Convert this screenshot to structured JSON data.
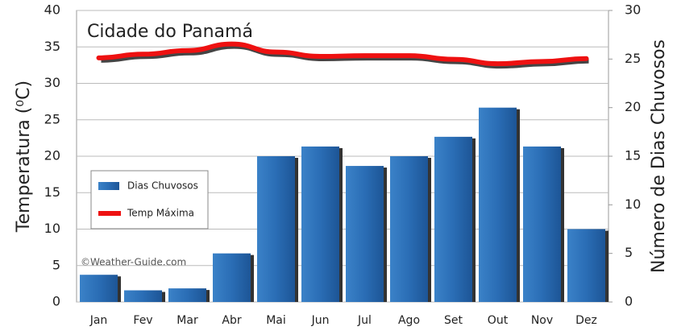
{
  "chart_data": {
    "type": "bar_line",
    "title": "Cidade do Panamá",
    "categories": [
      "Jan",
      "Fev",
      "Mar",
      "Abr",
      "Mai",
      "Jun",
      "Jul",
      "Ago",
      "Set",
      "Out",
      "Nov",
      "Dez"
    ],
    "series": [
      {
        "name": "Dias Chuvosos",
        "type": "bar",
        "axis": "y2",
        "color": "#2a6db5",
        "values": [
          2.8,
          1.2,
          1.4,
          5,
          15,
          16,
          14,
          15,
          17,
          20,
          16,
          7.5
        ]
      },
      {
        "name": "Temp Máxima",
        "type": "line",
        "axis": "y",
        "color": "#ee1111",
        "values": [
          33.5,
          34,
          34.5,
          35.4,
          34.3,
          33.7,
          33.8,
          33.8,
          33.3,
          32.7,
          33,
          33.4
        ]
      }
    ],
    "ylabel": "Temperatura (⁰C)",
    "y2label": "Número de Dias Chuvosos",
    "ylim": [
      0,
      40
    ],
    "yticks": [
      0,
      5,
      10,
      15,
      20,
      25,
      30,
      35,
      40
    ],
    "y2lim": [
      0,
      30
    ],
    "y2ticks": [
      0,
      5,
      10,
      15,
      20,
      25,
      30
    ],
    "grid": true,
    "legend": "left",
    "watermark": "©Weather-Guide.com"
  }
}
